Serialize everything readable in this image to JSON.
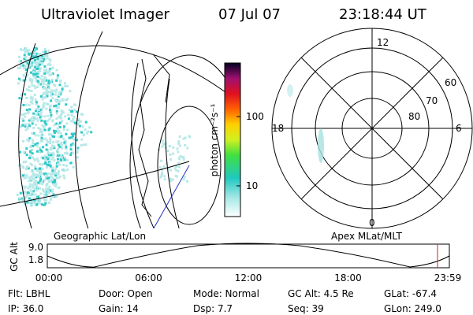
{
  "header": {
    "title": "Ultraviolet Imager",
    "date": "07 Jul 07",
    "time": "23:18:44 UT"
  },
  "colorbar": {
    "label": "photon cm⁻²s⁻¹",
    "ticks": [
      "100",
      "10"
    ]
  },
  "polar": {
    "hour_labels": [
      "12",
      "18",
      "6",
      "0"
    ],
    "lat_labels": [
      "60",
      "70",
      "80"
    ]
  },
  "panel_labels": {
    "left": "Geographic Lat/Lon",
    "right": "Apex MLat/MLT"
  },
  "altitude": {
    "axis_label": "GC Alt",
    "yticks": [
      "9.0",
      "1.8"
    ],
    "xticks": [
      "00:00",
      "06:00",
      "12:00",
      "18:00",
      "23:59"
    ]
  },
  "footer": {
    "rows": [
      [
        "Flt: LBHL",
        "Door: Open",
        "Mode: Normal",
        "GC Alt: 4.5 Re",
        "GLat: -67.4"
      ],
      [
        "IP: 36.0",
        "Gain: 14",
        "Dsp:     7.7",
        "Seq: 39",
        "GLon: 249.0"
      ]
    ]
  }
}
